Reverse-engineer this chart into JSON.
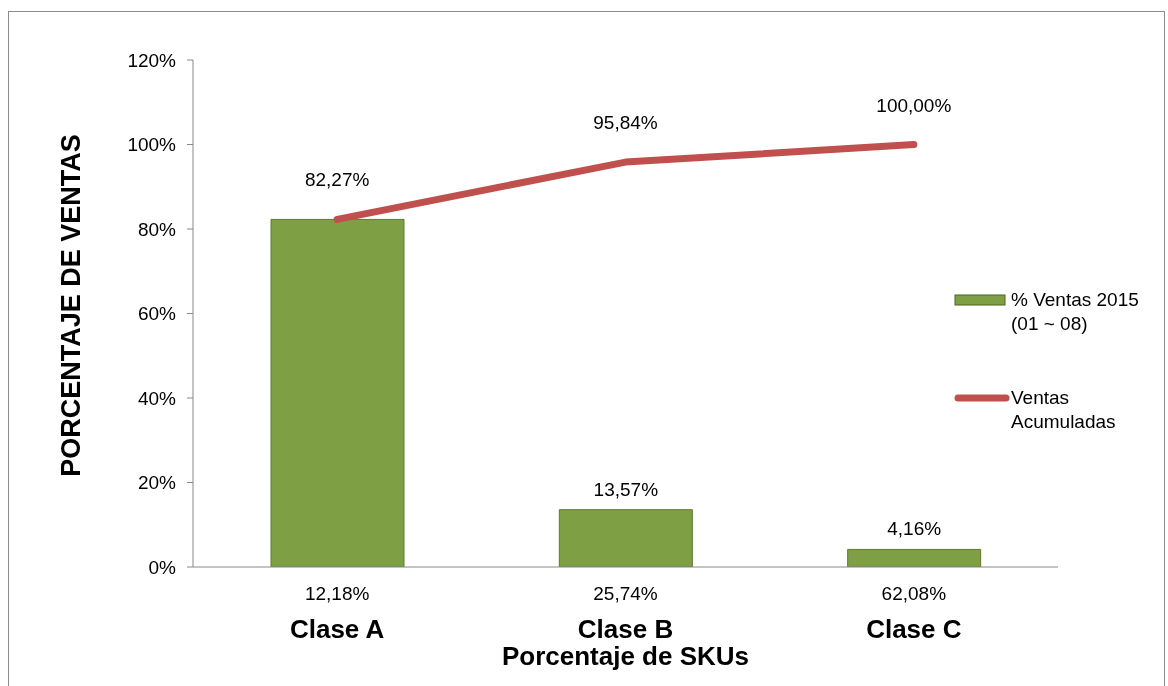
{
  "chart_data": {
    "type": "bar",
    "xlabel": "Porcentaje de SKUs",
    "ylabel": "PORCENTAJE DE VENTAS",
    "categories": [
      "12,18%\nClase A",
      "25,74%\nClase B",
      "62,08%\nClase C"
    ],
    "series": [
      {
        "name": "% Ventas 2015 (01 ~ 08)",
        "color": "#7f9f44",
        "values": [
          82.27,
          13.57,
          4.16
        ],
        "value_labels": [
          null,
          "13,57%",
          "4,16%"
        ]
      },
      {
        "name": "Ventas Acumuladas",
        "type": "line",
        "color": "#c0504d",
        "values": [
          82.27,
          95.84,
          100.0
        ],
        "value_labels": [
          "82,27%",
          "95,84%",
          "100,00%"
        ],
        "line_style": "solid"
      }
    ],
    "ylim": [
      0,
      120
    ],
    "yticks": [
      {
        "value": 0,
        "label": "0%"
      },
      {
        "value": 20,
        "label": "20%"
      },
      {
        "value": 40,
        "label": "40%"
      },
      {
        "value": 60,
        "label": "60%"
      },
      {
        "value": 80,
        "label": "80%"
      },
      {
        "value": 100,
        "label": "100%"
      },
      {
        "value": 120,
        "label": "120%"
      }
    ],
    "legend": "right"
  }
}
